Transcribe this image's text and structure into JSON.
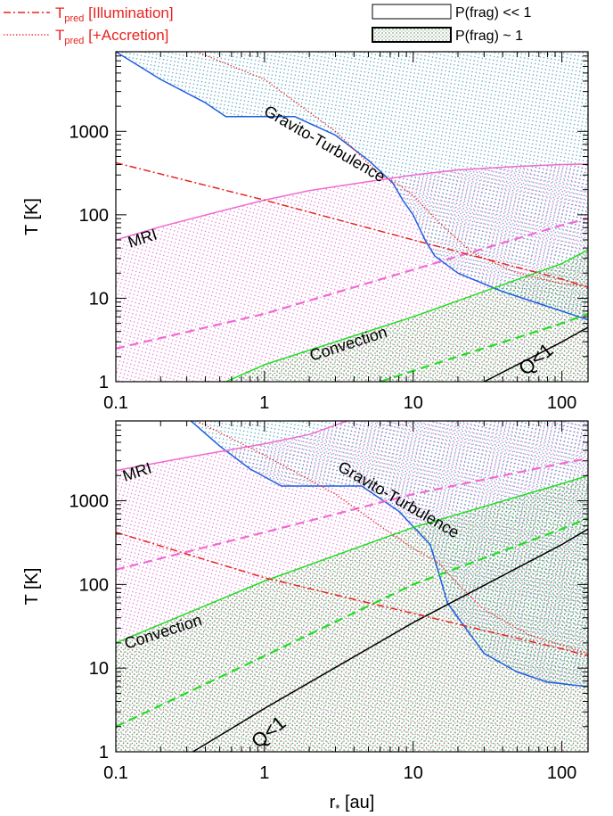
{
  "legend": {
    "illumination_prefix": "T",
    "illumination_sub": "pred",
    "illumination_suffix": " [Illumination]",
    "accretion_prefix": "T",
    "accretion_sub": "pred",
    "accretion_suffix": " [+Accretion]",
    "frag_low": "P(frag) << 1",
    "frag_high": "P(frag) ~ 1"
  },
  "colors": {
    "illumination": "#e8231f",
    "accretion": "#e8231f",
    "mri": "#f06ad2",
    "convection": "#22dd22",
    "gt": "#1f5fe0",
    "q": "#000000"
  },
  "chart_data": [
    {
      "type": "line",
      "xscale": "log",
      "yscale": "log",
      "xlim": [
        0.1,
        150
      ],
      "ylim": [
        1,
        9000
      ],
      "xticks": [
        0.1,
        1,
        10,
        100
      ],
      "xtick_labels": [
        "0.1",
        "1",
        "10",
        "100"
      ],
      "yticks": [
        1,
        10,
        100,
        1000
      ],
      "ytick_labels": [
        "1",
        "10",
        "100",
        "1000"
      ],
      "xlabel": "",
      "ylabel": "T [K]",
      "series": [
        {
          "name": "Gravito-Turbulence",
          "key": "gt",
          "style": "solid",
          "points": [
            [
              0.1,
              9000
            ],
            [
              0.2,
              4200
            ],
            [
              0.4,
              2200
            ],
            [
              0.55,
              1500
            ],
            [
              1.6,
              1500
            ],
            [
              3.0,
              900
            ],
            [
              5.0,
              450
            ],
            [
              7.3,
              240
            ],
            [
              8.5,
              150
            ],
            [
              10,
              100
            ],
            [
              12,
              50
            ],
            [
              14,
              32
            ],
            [
              20,
              20
            ],
            [
              40,
              12
            ],
            [
              80,
              8
            ],
            [
              150,
              5.5
            ]
          ]
        },
        {
          "name": "MRI",
          "key": "mri",
          "style": "solid",
          "points": [
            [
              0.1,
              50
            ],
            [
              0.2,
              72
            ],
            [
              0.5,
              110
            ],
            [
              1,
              150
            ],
            [
              2,
              195
            ],
            [
              5,
              250
            ],
            [
              10,
              300
            ],
            [
              20,
              345
            ],
            [
              50,
              380
            ],
            [
              100,
              400
            ],
            [
              150,
              405
            ]
          ]
        },
        {
          "name": "",
          "key": "mri",
          "style": "dashed",
          "points": [
            [
              0.1,
              2.5
            ],
            [
              1,
              6.5
            ],
            [
              10,
              22
            ],
            [
              100,
              75
            ],
            [
              150,
              90
            ]
          ]
        },
        {
          "name": "Convection",
          "key": "convection",
          "style": "solid",
          "points": [
            [
              0.55,
              1
            ],
            [
              1,
              1.6
            ],
            [
              10,
              6
            ],
            [
              100,
              26
            ],
            [
              150,
              38
            ]
          ]
        },
        {
          "name": "",
          "key": "convection",
          "style": "dashed",
          "points": [
            [
              6,
              1
            ],
            [
              10,
              1.35
            ],
            [
              100,
              5
            ],
            [
              150,
              6.5
            ]
          ]
        },
        {
          "name": "Q<1",
          "key": "q",
          "style": "solid",
          "points": [
            [
              30,
              1
            ],
            [
              100,
              3
            ],
            [
              150,
              4.5
            ]
          ]
        },
        {
          "name": "T_pred [Illumination]",
          "key": "illumination",
          "style": "dashdot",
          "points": [
            [
              0.1,
              420
            ],
            [
              1,
              150
            ],
            [
              10,
              50
            ],
            [
              100,
              17
            ],
            [
              150,
              13.5
            ]
          ]
        },
        {
          "name": "T_pred [+Accretion]",
          "key": "accretion",
          "style": "dotted",
          "points": [
            [
              0.35,
              9000
            ],
            [
              1,
              4200
            ],
            [
              3,
              1000
            ],
            [
              6,
              300
            ],
            [
              8,
              230
            ],
            [
              10,
              170
            ],
            [
              15,
              80
            ],
            [
              25,
              35
            ],
            [
              50,
              20
            ],
            [
              100,
              15
            ],
            [
              150,
              14
            ]
          ]
        }
      ],
      "annotations": [
        {
          "text": "Gravito-Turbulence",
          "series": "gt"
        },
        {
          "text": "MRI",
          "series": "mri"
        },
        {
          "text": "Convection",
          "series": "convection"
        },
        {
          "text": "Q<1",
          "series": "q"
        }
      ]
    },
    {
      "type": "line",
      "xscale": "log",
      "yscale": "log",
      "xlim": [
        0.1,
        150
      ],
      "ylim": [
        1,
        9000
      ],
      "xticks": [
        0.1,
        1,
        10,
        100
      ],
      "xtick_labels": [
        "0.1",
        "1",
        "10",
        "100"
      ],
      "yticks": [
        1,
        10,
        100,
        1000
      ],
      "ytick_labels": [
        "1",
        "10",
        "100",
        "1000"
      ],
      "xlabel": "r* [au]",
      "ylabel": "T [K]",
      "series": [
        {
          "name": "Gravito-Turbulence",
          "key": "gt",
          "style": "solid",
          "points": [
            [
              0.32,
              9000
            ],
            [
              0.5,
              4500
            ],
            [
              0.8,
              2400
            ],
            [
              1.3,
              1500
            ],
            [
              4.5,
              1500
            ],
            [
              8,
              750
            ],
            [
              13,
              300
            ],
            [
              15,
              130
            ],
            [
              17,
              60
            ],
            [
              20,
              40
            ],
            [
              30,
              15
            ],
            [
              50,
              9
            ],
            [
              80,
              6.8
            ],
            [
              150,
              6
            ]
          ]
        },
        {
          "name": "MRI",
          "key": "mri",
          "style": "solid",
          "points": [
            [
              0.1,
              2300
            ],
            [
              0.3,
              3300
            ],
            [
              1,
              4800
            ],
            [
              2,
              6200
            ],
            [
              3.6,
              9000
            ]
          ]
        },
        {
          "name": "",
          "key": "mri",
          "style": "dashed",
          "points": [
            [
              0.1,
              150
            ],
            [
              1,
              420
            ],
            [
              10,
              1200
            ],
            [
              100,
              2800
            ],
            [
              150,
              3200
            ]
          ]
        },
        {
          "name": "Convection",
          "key": "convection",
          "style": "solid",
          "points": [
            [
              0.1,
              20
            ],
            [
              1,
              110
            ],
            [
              10,
              480
            ],
            [
              100,
              1600
            ],
            [
              150,
              2000
            ]
          ]
        },
        {
          "name": "",
          "key": "convection",
          "style": "dashed",
          "points": [
            [
              0.1,
              2
            ],
            [
              1,
              14
            ],
            [
              10,
              100
            ],
            [
              100,
              460
            ],
            [
              150,
              620
            ]
          ]
        },
        {
          "name": "Q<1",
          "key": "q",
          "style": "solid",
          "points": [
            [
              0.33,
              1
            ],
            [
              1,
              3.3
            ],
            [
              10,
              35
            ],
            [
              100,
              300
            ],
            [
              150,
              460
            ]
          ]
        },
        {
          "name": "T_pred [Illumination]",
          "key": "illumination",
          "style": "dashdot",
          "points": [
            [
              0.1,
              420
            ],
            [
              1,
              120
            ],
            [
              10,
              45
            ],
            [
              100,
              17
            ],
            [
              150,
              14
            ]
          ]
        },
        {
          "name": "T_pred [+Accretion]",
          "key": "accretion",
          "style": "dotted",
          "points": [
            [
              0.35,
              9000
            ],
            [
              1,
              3500
            ],
            [
              3,
              1200
            ],
            [
              6,
              500
            ],
            [
              10,
              270
            ],
            [
              15,
              180
            ],
            [
              20,
              100
            ],
            [
              30,
              50
            ],
            [
              60,
              25
            ],
            [
              150,
              15
            ]
          ]
        }
      ],
      "annotations": [
        {
          "text": "Gravito-Turbulence",
          "series": "gt"
        },
        {
          "text": "MRI",
          "series": "mri"
        },
        {
          "text": "Convection",
          "series": "convection"
        },
        {
          "text": "Q<1",
          "series": "q"
        }
      ]
    }
  ]
}
